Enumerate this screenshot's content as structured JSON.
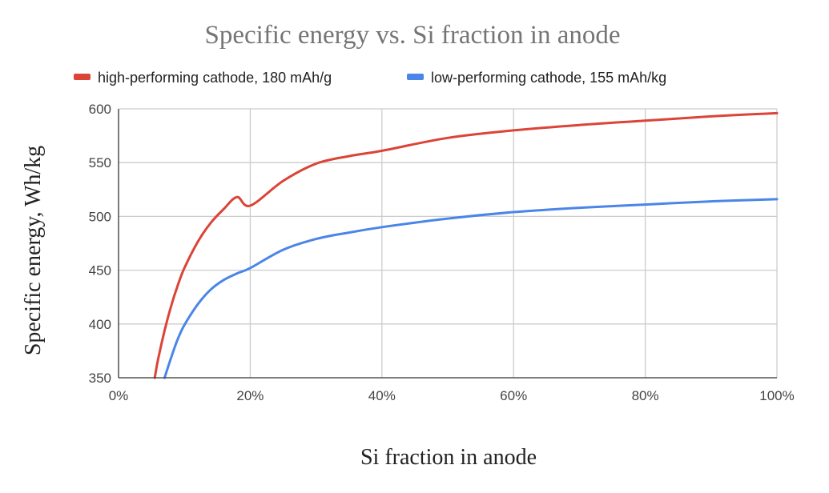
{
  "chart_data": {
    "type": "line",
    "title": "Specific energy vs. Si fraction in anode",
    "xlabel": "Si fraction in anode",
    "ylabel": "Specific energy, Wh/kg",
    "xlim": [
      0,
      100
    ],
    "ylim": [
      350,
      600
    ],
    "x_ticks": [
      0,
      20,
      40,
      60,
      80,
      100
    ],
    "x_tick_labels": [
      "0%",
      "20%",
      "40%",
      "60%",
      "80%",
      "100%"
    ],
    "y_ticks": [
      350,
      400,
      450,
      500,
      550,
      600
    ],
    "y_tick_labels": [
      "350",
      "400",
      "450",
      "500",
      "550",
      "600"
    ],
    "grid": true,
    "legend_position": "top",
    "series": [
      {
        "name": "high-performing cathode, 180 mAh/g",
        "color": "#db4437",
        "x": [
          5.5,
          6,
          7,
          8,
          9,
          10,
          12,
          14,
          16,
          18,
          20,
          25,
          30,
          35,
          40,
          50,
          60,
          70,
          80,
          90,
          100
        ],
        "y": [
          350,
          367,
          394,
          417,
          436,
          452,
          476,
          494,
          507,
          518,
          510,
          533,
          549,
          556,
          561,
          573,
          580,
          585,
          589,
          593,
          596
        ]
      },
      {
        "name": "low-performing cathode, 155 mAh/kg",
        "color": "#4a86e8",
        "x": [
          7,
          8,
          9,
          10,
          12,
          14,
          16,
          18,
          20,
          25,
          30,
          35,
          40,
          50,
          60,
          70,
          80,
          90,
          100
        ],
        "y": [
          350,
          369,
          386,
          399,
          418,
          432,
          441,
          447,
          452,
          469,
          479,
          485,
          490,
          498,
          504,
          508,
          511,
          514,
          516
        ]
      }
    ]
  }
}
